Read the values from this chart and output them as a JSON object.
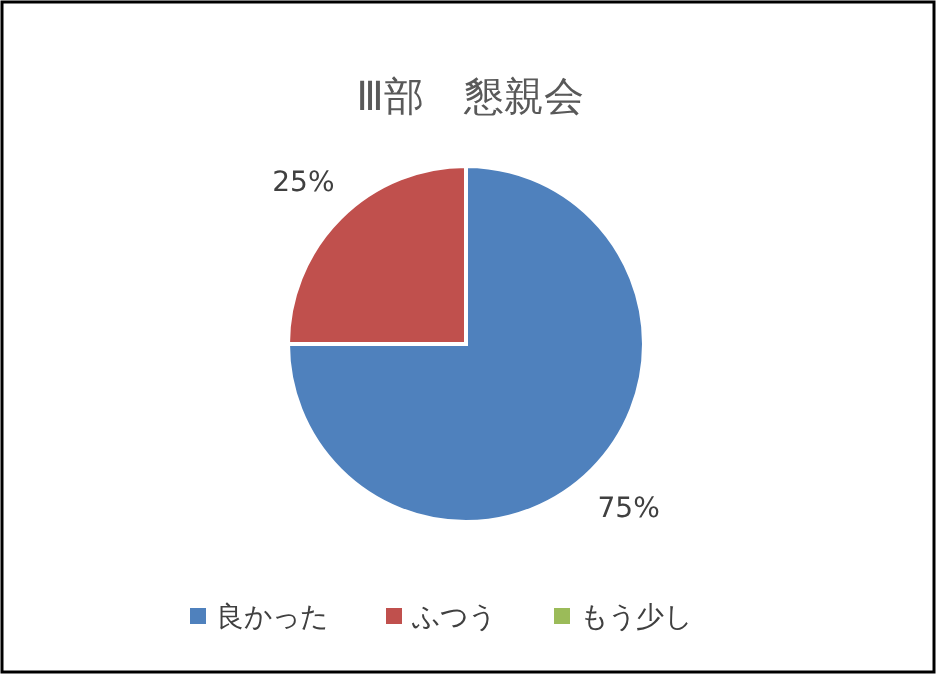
{
  "chart_data": {
    "type": "pie",
    "title": "Ⅲ部　懇親会",
    "categories": [
      "良かった",
      "ふつう",
      "もう少し"
    ],
    "values": [
      75,
      25,
      0
    ],
    "colors": [
      "#4f81bd",
      "#c0504d",
      "#9bbb59"
    ],
    "value_labels": [
      "75%",
      "25%",
      null
    ],
    "legend": "bottom"
  }
}
